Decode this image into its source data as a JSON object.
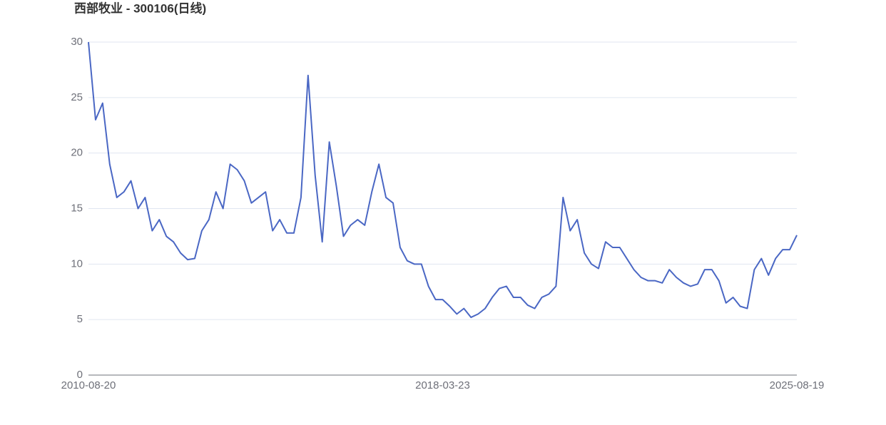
{
  "chart_data": {
    "type": "line",
    "title": "西部牧业 - 300106(日线)",
    "categories": [
      "2010-08-20",
      null,
      null,
      null,
      null,
      null,
      null,
      null,
      null,
      null,
      null,
      null,
      null,
      null,
      null,
      null,
      null,
      null,
      null,
      null,
      null,
      null,
      null,
      null,
      null,
      null,
      null,
      null,
      null,
      null,
      null,
      null,
      null,
      null,
      null,
      null,
      null,
      null,
      null,
      null,
      null,
      null,
      null,
      null,
      null,
      null,
      null,
      null,
      null,
      null,
      "2018-03-23",
      null,
      null,
      null,
      null,
      null,
      null,
      null,
      null,
      null,
      null,
      null,
      null,
      null,
      null,
      null,
      null,
      null,
      null,
      null,
      null,
      null,
      null,
      null,
      null,
      null,
      null,
      null,
      null,
      null,
      null,
      null,
      null,
      null,
      null,
      null,
      null,
      null,
      null,
      null,
      null,
      null,
      null,
      null,
      null,
      null,
      null,
      null,
      null,
      null,
      "2025-08-19"
    ],
    "series": [
      {
        "color": "#4a67c4",
        "values": [
          30,
          23,
          24.5,
          19,
          16,
          16.5,
          17.5,
          15,
          16,
          13,
          14,
          12.5,
          12,
          11,
          10.4,
          10.5,
          13,
          14,
          16.5,
          15,
          19,
          18.5,
          17.5,
          15.5,
          16,
          16.5,
          13,
          14,
          12.8,
          12.8,
          16,
          27,
          18,
          12,
          21,
          17,
          12.5,
          13.5,
          14,
          13.5,
          16.5,
          19,
          16,
          15.5,
          11.5,
          10.3,
          10,
          10,
          8,
          6.8,
          6.8,
          6.2,
          5.5,
          6,
          5.2,
          5.5,
          6,
          7,
          7.8,
          8,
          7,
          7,
          6.3,
          6,
          7,
          7.3,
          8,
          16,
          13,
          14,
          11,
          10,
          9.6,
          12,
          11.5,
          11.5,
          10.5,
          9.5,
          8.8,
          8.5,
          8.5,
          8.3,
          9.5,
          8.8,
          8.3,
          8,
          8.2,
          9.5,
          9.5,
          8.5,
          6.5,
          7,
          6.2,
          6,
          9.5,
          10.5,
          9,
          10.5,
          11.3,
          11.3,
          12.6
        ]
      }
    ],
    "ylim": [
      0,
      30
    ],
    "yticks": [
      0,
      5,
      10,
      15,
      20,
      25,
      30
    ],
    "grid": true
  }
}
